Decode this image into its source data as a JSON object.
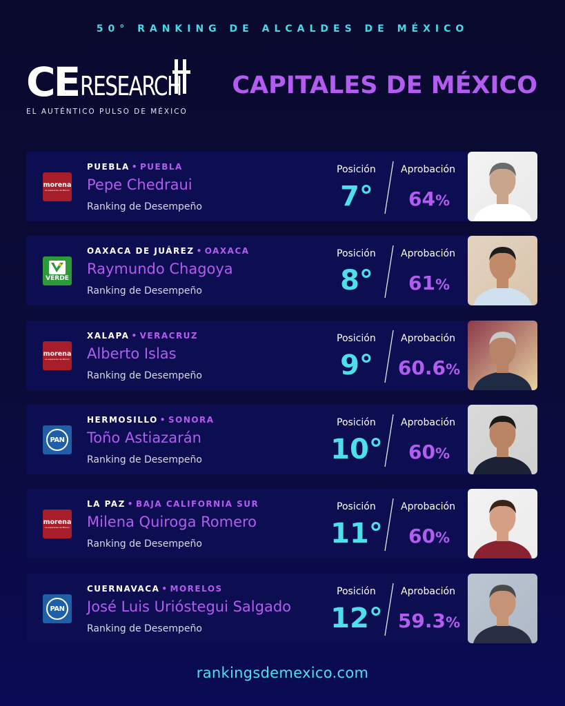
{
  "banner": "50° RANKING DE ALCALDES DE MÉXICO",
  "logo": {
    "ce": "CE",
    "research": "RESEARCH",
    "tagline": "EL AUTÉNTICO PULSO DE MÉXICO"
  },
  "title": "CAPITALES DE MÉXICO",
  "labels": {
    "position": "Posición",
    "approval": "Aprobación",
    "subtitle": "Ranking de Desempeño",
    "dot": "•"
  },
  "cards": [
    {
      "city": "PUEBLA",
      "state": "PUEBLA",
      "name": "Pepe Chedraui",
      "position": "7°",
      "approval": "64",
      "party": "morena",
      "party_label": "morena",
      "party_sub": "La esperanza de México"
    },
    {
      "city": "OAXACA DE JUÁREZ",
      "state": "OAXACA",
      "name": "Raymundo Chagoya",
      "position": "8°",
      "approval": "61",
      "party": "verde",
      "party_label": "VERDE",
      "party_sub": ""
    },
    {
      "city": "XALAPA",
      "state": "VERACRUZ",
      "name": "Alberto Islas",
      "position": "9°",
      "approval": "60.6",
      "party": "morena",
      "party_label": "morena",
      "party_sub": "La esperanza de México"
    },
    {
      "city": "HERMOSILLO",
      "state": "SONORA",
      "name": "Toño Astiazarán",
      "position": "10°",
      "approval": "60",
      "party": "pan",
      "party_label": "PAN",
      "party_sub": ""
    },
    {
      "city": "LA PAZ",
      "state": "BAJA CALIFORNIA SUR",
      "name": "Milena Quiroga Romero",
      "position": "11°",
      "approval": "60",
      "party": "morena",
      "party_label": "morena",
      "party_sub": "La esperanza de México"
    },
    {
      "city": "CUERNAVACA",
      "state": "MORELOS",
      "name": "José Luis Urióstegui Salgado",
      "position": "12°",
      "approval": "59.3",
      "party": "pan",
      "party_label": "PAN",
      "party_sub": ""
    }
  ],
  "percent": "%",
  "footer": "rankingsdemexico.com",
  "colors": {
    "background": "#0a0a2e",
    "card": "#0d0d52",
    "accent_purple": "#b35cf0",
    "accent_cyan": "#4de0ea",
    "banner_cyan": "#4ad9e4"
  }
}
